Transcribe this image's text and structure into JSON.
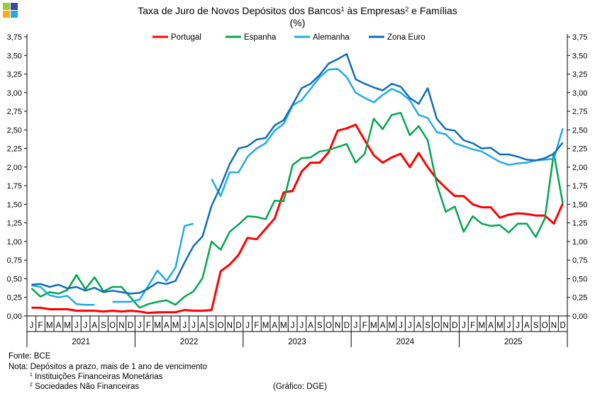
{
  "chart_data": {
    "type": "line",
    "title": "Taxa de Juro de Novos Depósitos dos Bancos¹ às Empresas² e Famílias",
    "title_parts": {
      "a": "Taxa de Juro de Novos Depósitos dos Bancos",
      "sup1": "1",
      "b": " às Empresas",
      "sup2": "2",
      "c": " e Famílias"
    },
    "subtitle": "(%)",
    "ylim": [
      0,
      3.75
    ],
    "yticks": [
      "0,00",
      "0,25",
      "0,50",
      "0,75",
      "1,00",
      "1,25",
      "1,50",
      "1,75",
      "2,00",
      "2,25",
      "2,50",
      "2,75",
      "3,00",
      "3,25",
      "3,50",
      "3,75"
    ],
    "month_labels": [
      "J",
      "F",
      "M",
      "A",
      "M",
      "J",
      "J",
      "A",
      "S",
      "O",
      "N",
      "D"
    ],
    "years": [
      "2021",
      "2022",
      "2023",
      "2024",
      "2025"
    ],
    "legend_position": "top",
    "grid": false,
    "series": [
      {
        "name": "Portugal",
        "color": "#ff0000",
        "values": [
          0.11,
          0.11,
          0.09,
          0.09,
          0.09,
          0.07,
          0.07,
          0.07,
          0.06,
          0.07,
          0.06,
          0.07,
          0.06,
          0.04,
          0.05,
          0.05,
          0.05,
          0.08,
          0.07,
          0.07,
          0.08,
          0.6,
          0.69,
          0.82,
          1.05,
          1.03,
          1.17,
          1.31,
          1.66,
          1.68,
          1.94,
          2.06,
          2.06,
          2.2,
          2.49,
          2.52,
          2.57,
          2.36,
          2.16,
          2.06,
          2.13,
          2.18,
          2.0,
          2.19,
          2.0,
          1.84,
          1.72,
          1.61,
          1.61,
          1.5,
          1.46,
          1.46,
          1.32,
          1.36,
          1.38,
          1.37,
          1.35,
          1.35,
          1.24,
          1.51
        ]
      },
      {
        "name": "Espanha",
        "color": "#00a650",
        "values": [
          0.37,
          0.26,
          0.32,
          0.3,
          0.35,
          0.55,
          0.36,
          0.52,
          0.33,
          0.39,
          0.39,
          0.25,
          0.11,
          0.16,
          0.19,
          0.21,
          0.15,
          0.26,
          0.33,
          0.51,
          1.0,
          0.89,
          1.13,
          1.23,
          1.34,
          1.33,
          1.3,
          1.55,
          1.54,
          2.03,
          2.12,
          2.13,
          2.21,
          2.23,
          2.27,
          2.31,
          2.06,
          2.18,
          2.65,
          2.51,
          2.7,
          2.73,
          2.43,
          2.55,
          2.36,
          1.77,
          1.4,
          1.47,
          1.13,
          1.34,
          1.24,
          1.21,
          1.22,
          1.12,
          1.24,
          1.24,
          1.06,
          1.31,
          2.19,
          1.51
        ]
      },
      {
        "name": "Alemanha",
        "color": "#1eaae7",
        "values": [
          0.41,
          0.39,
          0.28,
          0.25,
          0.27,
          0.16,
          0.15,
          0.15,
          null,
          0.19,
          0.19,
          0.19,
          0.22,
          0.41,
          0.61,
          0.47,
          0.65,
          1.21,
          1.24,
          null,
          1.84,
          1.61,
          1.93,
          1.93,
          2.14,
          2.25,
          2.32,
          2.49,
          2.58,
          2.83,
          2.9,
          3.05,
          3.21,
          3.31,
          3.32,
          3.21,
          3.0,
          2.93,
          2.87,
          2.97,
          3.05,
          3.0,
          2.9,
          2.7,
          2.66,
          2.47,
          2.44,
          2.32,
          2.28,
          2.24,
          2.21,
          2.14,
          2.07,
          2.03,
          2.05,
          2.06,
          2.09,
          2.1,
          2.11,
          2.52
        ]
      },
      {
        "name": "Zona Euro",
        "color": "#0f6db8",
        "values": [
          0.42,
          0.43,
          0.39,
          0.42,
          0.37,
          0.39,
          0.34,
          0.38,
          0.32,
          0.34,
          0.32,
          0.3,
          0.31,
          0.37,
          0.45,
          0.43,
          0.47,
          0.72,
          0.94,
          1.07,
          1.48,
          1.74,
          2.04,
          2.25,
          2.28,
          2.37,
          2.39,
          2.56,
          2.63,
          2.84,
          3.06,
          3.12,
          3.24,
          3.39,
          3.45,
          3.52,
          3.18,
          3.12,
          3.07,
          3.03,
          3.12,
          3.08,
          2.93,
          2.85,
          3.06,
          2.65,
          2.51,
          2.49,
          2.36,
          2.32,
          2.25,
          2.26,
          2.17,
          2.17,
          2.14,
          2.1,
          2.09,
          2.12,
          2.18,
          2.33
        ]
      }
    ]
  },
  "footer": {
    "source": "Fonte: BCE",
    "note": "Nota: Depósitos a prazo, mais de 1 ano de vencimento",
    "fn1_mark": "1",
    "fn1": " Instituições Financeiras Monetárias",
    "fn2_mark": "2",
    "fn2": " Sociedades Não Financeiras",
    "credit": "(Gráfico: DGE)"
  },
  "logo_colors": [
    "#8dc63f",
    "#2e3192",
    "#f7a800",
    "#1eaae7"
  ]
}
